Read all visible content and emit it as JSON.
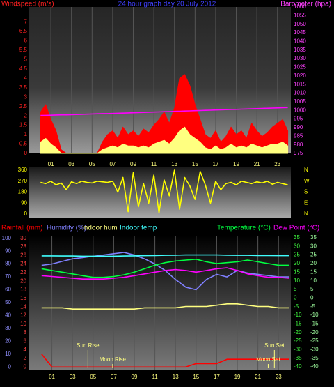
{
  "chart_data": [
    {
      "type": "line",
      "title": "24 hour graph day  20 July 2012",
      "y_label": "Windspeed (m/s)",
      "y2_label": "Barometer (hpa)",
      "x": [
        0,
        0.5,
        1,
        1.5,
        2,
        2.5,
        3,
        3.5,
        4,
        4.5,
        5,
        5.5,
        6,
        6.5,
        7,
        7.5,
        8,
        8.5,
        9,
        9.5,
        10,
        10.5,
        11,
        11.5,
        12,
        12.5,
        13,
        13.5,
        14,
        14.5,
        15,
        15.5,
        16,
        16.5,
        17,
        17.5,
        18,
        18.5,
        19,
        19.5,
        20,
        20.5,
        21,
        21.5,
        22,
        22.5,
        23,
        23.5,
        24
      ],
      "xlim": [
        -1.1,
        24.3
      ],
      "xticks": [
        {
          "value": 1,
          "label": "01"
        },
        {
          "value": 3,
          "label": "03"
        },
        {
          "value": 5,
          "label": "05"
        },
        {
          "value": 7,
          "label": "07"
        },
        {
          "value": 9,
          "label": "09"
        },
        {
          "value": 11,
          "label": "11"
        },
        {
          "value": 13,
          "label": "13"
        },
        {
          "value": 15,
          "label": "15"
        },
        {
          "value": 17,
          "label": "17"
        },
        {
          "value": 19,
          "label": "19"
        },
        {
          "value": 21,
          "label": "21"
        },
        {
          "value": 23,
          "label": "23"
        }
      ],
      "ylim": [
        0,
        7.8
      ],
      "yticks": [
        0,
        0.5,
        1,
        1.5,
        2,
        2.5,
        3,
        3.5,
        4,
        4.5,
        5,
        5.5,
        6,
        6.5,
        7
      ],
      "y2lim": [
        975,
        1060
      ],
      "y2ticks": [
        975,
        980,
        985,
        990,
        995,
        1000,
        1005,
        1010,
        1015,
        1020,
        1025,
        1030,
        1035,
        1040,
        1045,
        1050,
        1055,
        1060
      ],
      "grid": true,
      "series": [
        {
          "color": "#ff0000",
          "fill": true,
          "values": [
            2.2,
            2.6,
            1.8,
            1.2,
            0.2,
            0,
            0,
            0,
            0,
            0,
            0,
            0,
            0.6,
            1.0,
            1.2,
            0.8,
            1.4,
            1.0,
            1.2,
            0.9,
            1.3,
            1.1,
            1.5,
            1.8,
            2.2,
            1.6,
            2.4,
            4.0,
            4.2,
            3.6,
            2.6,
            1.8,
            1.0,
            0.8,
            1.2,
            0.6,
            0.9,
            1.4,
            1.0,
            1.2,
            0.8,
            1.6,
            1.2,
            0.9,
            1.1,
            1.4,
            1.6,
            1.8,
            1.2
          ]
        },
        {
          "color": "#ffff80",
          "fill": true,
          "values": [
            0.6,
            0.8,
            0.5,
            0.3,
            0,
            0,
            0,
            0,
            0,
            0,
            0,
            0,
            0.2,
            0.3,
            0.4,
            0.3,
            0.5,
            0.4,
            0.4,
            0.3,
            0.4,
            0.3,
            0.5,
            0.6,
            0.7,
            0.5,
            0.8,
            1.2,
            1.4,
            1.0,
            0.8,
            0.6,
            0.3,
            0.2,
            0.4,
            0.2,
            0.3,
            0.5,
            0.3,
            0.4,
            0.3,
            0.5,
            0.4,
            0.3,
            0.4,
            0.5,
            0.5,
            0.6,
            0.4
          ]
        },
        {
          "color": "#ff00ff",
          "axis": "y2",
          "values": [
            997.0,
            997.1,
            997.2,
            997.3,
            997.4,
            997.4,
            997.5,
            997.6,
            997.7,
            997.8,
            997.9,
            998.0,
            998.1,
            998.1,
            998.2,
            998.3,
            998.4,
            998.5,
            998.6,
            998.7,
            998.8,
            998.9,
            999.0,
            999.1,
            999.2,
            999.3,
            999.4,
            999.5,
            999.6,
            999.7,
            999.8,
            999.9,
            1000.0,
            1000.1,
            1000.2,
            1000.3,
            1000.4,
            1000.5,
            1000.6,
            1000.7,
            1000.8,
            1000.9,
            1001.0,
            1001.1,
            1001.2,
            1001.3,
            1001.4,
            1001.5,
            1001.6
          ]
        }
      ]
    },
    {
      "type": "line",
      "x": [
        0,
        0.5,
        1,
        1.5,
        2,
        2.5,
        3,
        3.5,
        4,
        4.5,
        5,
        5.5,
        6,
        6.5,
        7,
        7.5,
        8,
        8.5,
        9,
        9.5,
        10,
        10.5,
        11,
        11.5,
        12,
        12.5,
        13,
        13.5,
        14,
        14.5,
        15,
        15.5,
        16,
        16.5,
        17,
        17.5,
        18,
        18.5,
        19,
        19.5,
        20,
        20.5,
        21,
        21.5,
        22,
        22.5,
        23,
        23.5,
        24
      ],
      "xlim": [
        -1.1,
        24.3
      ],
      "ylim": [
        -28,
        383
      ],
      "yticks": [
        0,
        90,
        180,
        270,
        360
      ],
      "y2ticks": [
        {
          "value": 360,
          "label": "N"
        },
        {
          "value": 270,
          "label": "W"
        },
        {
          "value": 180,
          "label": "S"
        },
        {
          "value": 90,
          "label": "E"
        },
        {
          "value": 0,
          "label": "N"
        }
      ],
      "series": [
        {
          "color": "#ffff00",
          "values": [
            260,
            250,
            270,
            240,
            255,
            200,
            265,
            250,
            270,
            260,
            255,
            270,
            265,
            260,
            270,
            180,
            300,
            20,
            340,
            60,
            250,
            90,
            320,
            10,
            280,
            150,
            360,
            40,
            300,
            230,
            120,
            350,
            240,
            90,
            270,
            200,
            250,
            260,
            240,
            270,
            260,
            250,
            265,
            255,
            270,
            245,
            260,
            250,
            240
          ]
        }
      ]
    },
    {
      "type": "line",
      "x": [
        0,
        1,
        2,
        3,
        4,
        5,
        6,
        7,
        8,
        9,
        10,
        11,
        12,
        13,
        14,
        15,
        16,
        17,
        18,
        19,
        20,
        21,
        22,
        23,
        24
      ],
      "xlim": [
        -1.2,
        24.2
      ],
      "xticks": [
        {
          "value": 1,
          "label": "01"
        },
        {
          "value": 3,
          "label": "03"
        },
        {
          "value": 5,
          "label": "05"
        },
        {
          "value": 7,
          "label": "07"
        },
        {
          "value": 9,
          "label": "09"
        },
        {
          "value": 11,
          "label": "11"
        },
        {
          "value": 13,
          "label": "13"
        },
        {
          "value": 15,
          "label": "15"
        },
        {
          "value": 17,
          "label": "17"
        },
        {
          "value": 19,
          "label": "19"
        },
        {
          "value": 21,
          "label": "21"
        },
        {
          "value": 23,
          "label": "23"
        }
      ],
      "ylim": [
        -2,
        102
      ],
      "yticks": [
        0,
        10,
        20,
        30,
        40,
        50,
        60,
        70,
        80,
        90,
        100
      ],
      "y3lim": [
        -0.6,
        30.6
      ],
      "y3ticks": [
        0,
        2,
        4,
        6,
        8,
        10,
        12,
        14,
        16,
        18,
        20,
        22,
        24,
        26,
        28,
        30
      ],
      "y2lim": [
        -41.6,
        36.2
      ],
      "y2ticks": [
        -40,
        -35,
        -30,
        -25,
        -20,
        -15,
        -10,
        -5,
        0,
        5,
        10,
        15,
        20,
        25,
        30,
        35
      ],
      "y4lim": [
        -41.6,
        36.2
      ],
      "y4ticks": [
        -40,
        -35,
        -30,
        -25,
        -20,
        -15,
        -10,
        -5,
        0,
        5,
        10,
        15,
        20,
        25,
        30,
        35
      ],
      "grid": true,
      "series": [
        {
          "name": "Rainfall (mm)",
          "color": "#ff0000",
          "axis": "y3",
          "values": [
            3,
            0,
            0,
            0,
            0,
            0,
            0,
            0,
            0,
            0,
            0,
            0,
            0,
            0,
            0,
            0.8,
            0.8,
            0.8,
            1.8,
            1.8,
            1.8,
            1.8,
            1.8,
            1.8,
            1.8
          ]
        },
        {
          "name": "Humidity (%)",
          "color": "#8080ff",
          "values": [
            79,
            80,
            82,
            84,
            85,
            86,
            87,
            88,
            89,
            87,
            84,
            80,
            75,
            68,
            62,
            60,
            68,
            72,
            70,
            75,
            73,
            72,
            71,
            70,
            70
          ]
        },
        {
          "name": "Indoor hum",
          "color": "#ffff80",
          "values": [
            46,
            46,
            46,
            45,
            45,
            45,
            45,
            45,
            45,
            45,
            46,
            46,
            46,
            46,
            47,
            47,
            47,
            48,
            49,
            49,
            48,
            47,
            47,
            46,
            46
          ]
        },
        {
          "name": "Indoor temp",
          "color": "#40ffff",
          "axis": "y2",
          "values": [
            24.5,
            24.5,
            24.4,
            24.4,
            24.3,
            24.3,
            24.3,
            24.3,
            24.4,
            24.5,
            24.6,
            24.7,
            24.8,
            24.9,
            25,
            25,
            25,
            25,
            24.9,
            24.8,
            24.8,
            24.7,
            24.7,
            24.6,
            24.6
          ]
        },
        {
          "name": "Temperature (°C)",
          "color": "#00ff40",
          "axis": "y2",
          "values": [
            17,
            16,
            15,
            14,
            13,
            12,
            12,
            12.5,
            13.5,
            15,
            17,
            19,
            20.5,
            21.5,
            22,
            22.5,
            21,
            20,
            20.5,
            21,
            22,
            21,
            20,
            19,
            19
          ]
        },
        {
          "name": "Dew Point (°C)",
          "color": "#ff00ff",
          "axis": "y2",
          "values": [
            13,
            12.5,
            12,
            11.5,
            11,
            11,
            11,
            11.5,
            12,
            13,
            14,
            15,
            16,
            16.5,
            16,
            15,
            16,
            17,
            17.5,
            16,
            14,
            13,
            12,
            12,
            11.5
          ]
        }
      ],
      "annotations": [
        {
          "text": "Sun Rise",
          "x": 4.5
        },
        {
          "text": "Moon Rise",
          "x": 6.9
        },
        {
          "text": "Sun Set",
          "x": 22.6
        },
        {
          "text": "Moon Set",
          "x": 22.0
        }
      ]
    }
  ]
}
